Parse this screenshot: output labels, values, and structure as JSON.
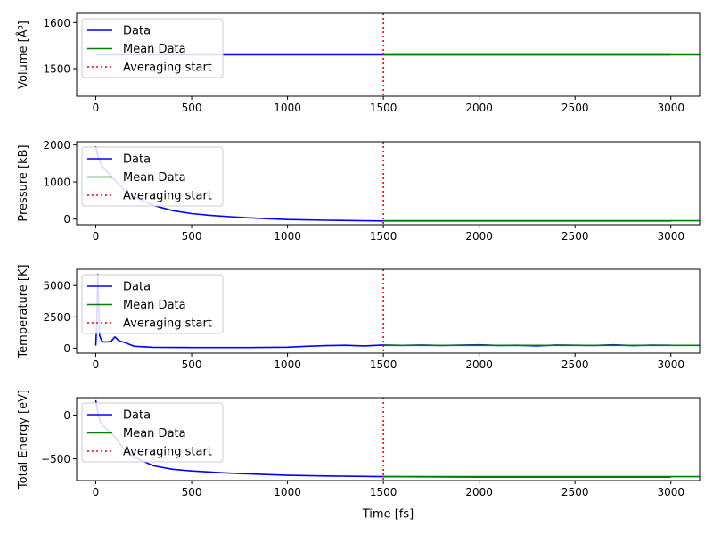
{
  "figure": {
    "xlabel": "Time [fs]",
    "xticks": [
      0,
      500,
      1000,
      1500,
      2000,
      2500,
      3000
    ],
    "xlim": [
      -100,
      3150
    ]
  },
  "legend": {
    "placement": "upper-left",
    "entries": [
      {
        "label": "Data",
        "color": "#0000ff",
        "style": "solid"
      },
      {
        "label": "Mean Data",
        "color": "#008000",
        "style": "solid"
      },
      {
        "label": "Averaging start",
        "color": "#ff0000",
        "style": "dotted"
      }
    ]
  },
  "colors": {
    "data": "#0000ff",
    "mean": "#008000",
    "averaging": "#ff0000"
  },
  "chart_data": [
    {
      "type": "line",
      "ylabel": "Volume [Å³]",
      "ylim": [
        1440,
        1620
      ],
      "yticks": [
        1500,
        1600
      ],
      "averaging_start": 1500,
      "series": [
        {
          "name": "Data",
          "x": [
            0,
            500,
            1000,
            1500,
            2000,
            2500,
            3000
          ],
          "y": [
            1530,
            1530,
            1530,
            1530,
            1530,
            1530,
            1530
          ]
        },
        {
          "name": "Mean Data",
          "x": [
            1500,
            3150
          ],
          "y": [
            1530,
            1530
          ]
        }
      ]
    },
    {
      "type": "line",
      "ylabel": "Pressure [kB]",
      "ylim": [
        -150,
        2080
      ],
      "yticks": [
        0,
        1000,
        2000
      ],
      "averaging_start": 1500,
      "series": [
        {
          "name": "Data",
          "x": [
            0,
            10,
            30,
            50,
            100,
            150,
            200,
            300,
            400,
            500,
            600,
            700,
            800,
            900,
            1000,
            1200,
            1400,
            1500,
            1750,
            2000,
            2500,
            3000
          ],
          "y": [
            1960,
            1700,
            1450,
            1330,
            1050,
            780,
            600,
            370,
            230,
            150,
            100,
            65,
            35,
            10,
            -10,
            -30,
            -45,
            -50,
            -50,
            -50,
            -50,
            -50
          ]
        },
        {
          "name": "Mean Data",
          "x": [
            1500,
            3150
          ],
          "y": [
            -45,
            -45
          ]
        }
      ]
    },
    {
      "type": "line",
      "ylabel": "Temperature [K]",
      "ylim": [
        -400,
        6300
      ],
      "yticks": [
        0,
        2500,
        5000
      ],
      "averaging_start": 1500,
      "series": [
        {
          "name": "Data",
          "x": [
            0,
            5,
            10,
            15,
            20,
            30,
            40,
            60,
            80,
            100,
            120,
            150,
            200,
            300,
            500,
            800,
            1000,
            1100,
            1200,
            1300,
            1350,
            1400,
            1500,
            1600,
            1700,
            1800,
            1900,
            2000,
            2100,
            2200,
            2300,
            2400,
            2500,
            2600,
            2700,
            2800,
            2900,
            3000
          ],
          "y": [
            200,
            2000,
            5900,
            3500,
            1000,
            600,
            500,
            500,
            550,
            900,
            600,
            450,
            150,
            70,
            50,
            50,
            80,
            150,
            200,
            230,
            200,
            180,
            250,
            220,
            250,
            210,
            240,
            260,
            210,
            230,
            180,
            250,
            230,
            210,
            260,
            200,
            240,
            230
          ]
        },
        {
          "name": "Mean Data",
          "x": [
            1500,
            3150
          ],
          "y": [
            220,
            220
          ]
        }
      ]
    },
    {
      "type": "line",
      "ylabel": "Total Energy [eV]",
      "ylim": [
        -750,
        200
      ],
      "yticks": [
        -500,
        0
      ],
      "averaging_start": 1500,
      "series": [
        {
          "name": "Data",
          "x": [
            0,
            10,
            20,
            30,
            50,
            80,
            100,
            150,
            200,
            300,
            400,
            500,
            700,
            1000,
            1300,
            1500,
            2000,
            2500,
            3000
          ],
          "y": [
            170,
            40,
            -50,
            -100,
            -150,
            -200,
            -250,
            -400,
            -480,
            -580,
            -620,
            -640,
            -665,
            -690,
            -700,
            -705,
            -710,
            -710,
            -710
          ]
        },
        {
          "name": "Mean Data",
          "x": [
            1500,
            3150
          ],
          "y": [
            -705,
            -705
          ]
        }
      ]
    }
  ]
}
